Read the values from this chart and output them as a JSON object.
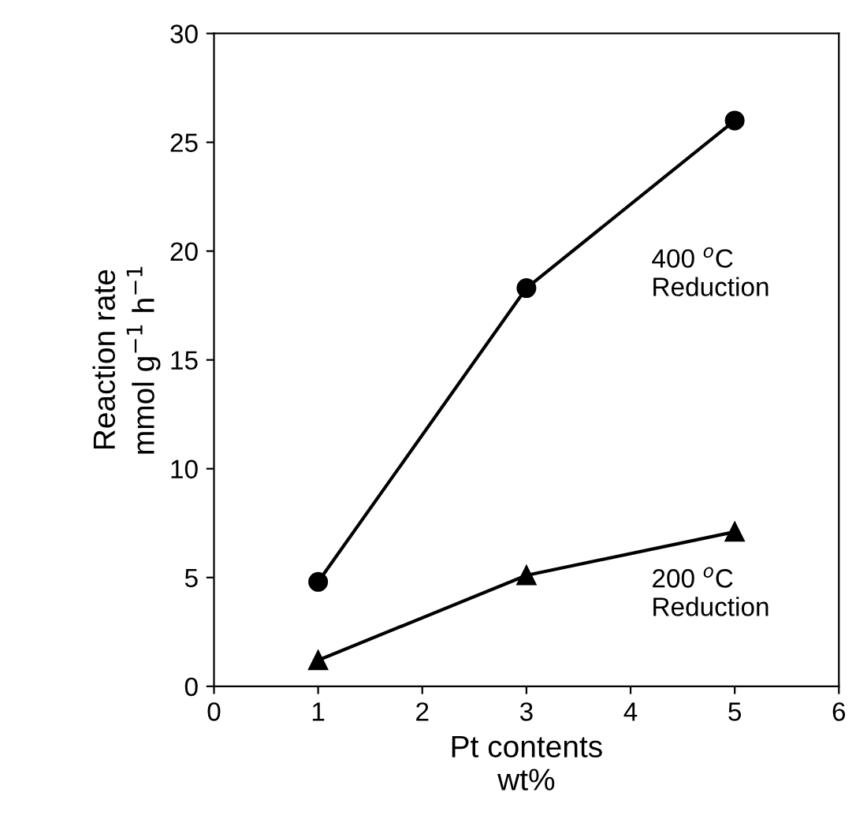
{
  "chart_data": {
    "type": "line",
    "xlabel": "Pt contents\nwt%",
    "ylabel": "Reaction rate\nmmol g$^{−1}$ h$^{−1}$",
    "x": [
      1,
      3,
      5
    ],
    "series": [
      {
        "color": "#000000",
        "marker": "circle",
        "values": [
          4.8,
          18.3,
          26.0
        ]
      },
      {
        "color": "#000000",
        "marker": "triangle",
        "values": [
          1.2,
          5.1,
          7.1
        ]
      }
    ],
    "annotations": [
      "400 $^{o}$C\nReduction",
      "200 $^{o}$C\nReduction"
    ],
    "xlim": [
      0,
      6
    ],
    "xticks": [
      0,
      1,
      2,
      3,
      4,
      5,
      6
    ],
    "ylim": [
      0,
      30
    ],
    "yticks": [
      0,
      5,
      10,
      15,
      20,
      25,
      30
    ],
    "grid": false,
    "legend": false,
    "line_style": "solid"
  }
}
